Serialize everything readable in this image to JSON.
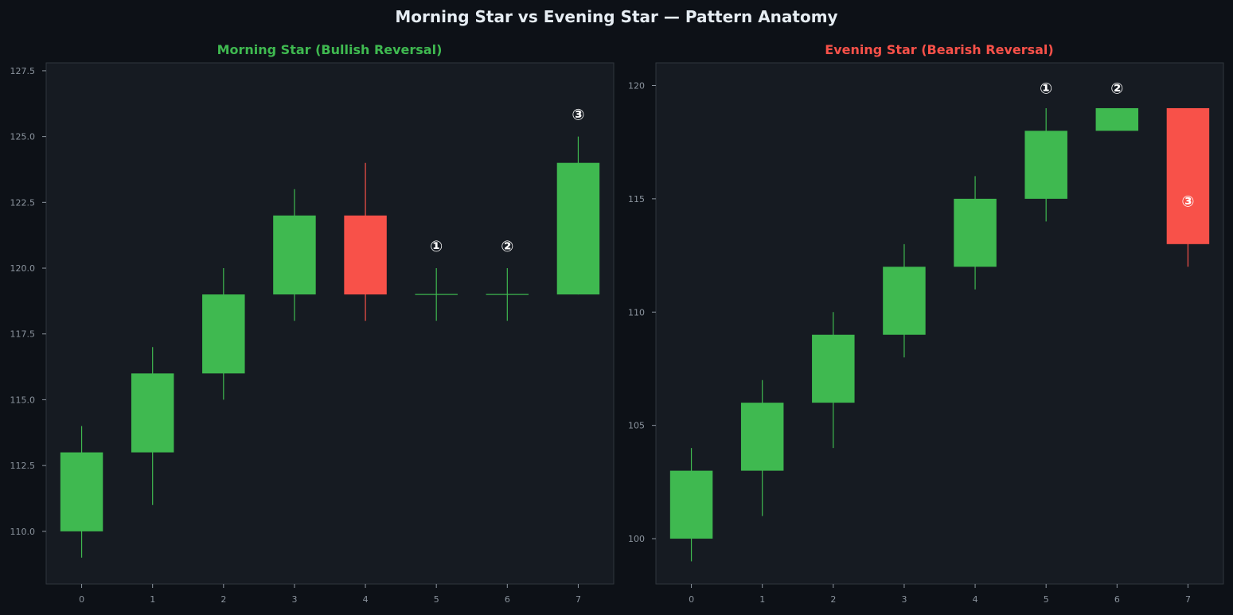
{
  "figure": {
    "title": "Morning Star vs Evening Star — Pattern Anatomy",
    "background": "#0d1117",
    "panel_background": "#161b22",
    "spine_color": "#30363d",
    "tick_color": "#8b949e",
    "bullish_color": "#3fb950",
    "bearish_color": "#f85149",
    "marker_color": "#ffffff"
  },
  "chart_data": [
    {
      "type": "candlestick",
      "title": "Morning Star (Bullish Reversal)",
      "title_color": "#3fb950",
      "xlabel": "",
      "ylabel": "",
      "xlim": [
        -0.5,
        7.5
      ],
      "ylim": [
        108.0,
        127.8
      ],
      "x_ticks": [
        0,
        1,
        2,
        3,
        4,
        5,
        6,
        7
      ],
      "y_ticks": [
        110.0,
        112.5,
        115.0,
        117.5,
        120.0,
        122.5,
        125.0,
        127.5
      ],
      "y_tick_labels": [
        "110.0",
        "112.5",
        "115.0",
        "117.5",
        "120.0",
        "122.5",
        "125.0",
        "127.5"
      ],
      "grid": false,
      "candles": [
        {
          "x": 0,
          "open": 110,
          "high": 114,
          "low": 109,
          "close": 113
        },
        {
          "x": 1,
          "open": 113,
          "high": 117,
          "low": 111,
          "close": 116
        },
        {
          "x": 2,
          "open": 116,
          "high": 120,
          "low": 115,
          "close": 119
        },
        {
          "x": 3,
          "open": 119,
          "high": 123,
          "low": 118,
          "close": 122
        },
        {
          "x": 4,
          "open": 122,
          "high": 124,
          "low": 118,
          "close": 119
        },
        {
          "x": 5,
          "open": 119,
          "high": 120,
          "low": 118,
          "close": 119
        },
        {
          "x": 6,
          "open": 119,
          "high": 120,
          "low": 118,
          "close": 119
        },
        {
          "x": 7,
          "open": 119,
          "high": 125,
          "low": 119,
          "close": 124
        }
      ],
      "annotations": [
        {
          "text": "①",
          "x": 5,
          "y": 120.85
        },
        {
          "text": "②",
          "x": 6,
          "y": 120.85
        },
        {
          "text": "③",
          "x": 7,
          "y": 125.85
        }
      ]
    },
    {
      "type": "candlestick",
      "title": "Evening Star (Bearish Reversal)",
      "title_color": "#f85149",
      "xlabel": "",
      "ylabel": "",
      "xlim": [
        -0.5,
        7.5
      ],
      "ylim": [
        98.0,
        121.0
      ],
      "x_ticks": [
        0,
        1,
        2,
        3,
        4,
        5,
        6,
        7
      ],
      "y_ticks": [
        100,
        105,
        110,
        115,
        120
      ],
      "y_tick_labels": [
        "100",
        "105",
        "110",
        "115",
        "120"
      ],
      "grid": false,
      "candles": [
        {
          "x": 0,
          "open": 100,
          "high": 104,
          "low": 99,
          "close": 103
        },
        {
          "x": 1,
          "open": 103,
          "high": 107,
          "low": 101,
          "close": 106
        },
        {
          "x": 2,
          "open": 106,
          "high": 110,
          "low": 104,
          "close": 109
        },
        {
          "x": 3,
          "open": 109,
          "high": 113,
          "low": 108,
          "close": 112
        },
        {
          "x": 4,
          "open": 112,
          "high": 116,
          "low": 111,
          "close": 115
        },
        {
          "x": 5,
          "open": 115,
          "high": 119,
          "low": 114,
          "close": 118
        },
        {
          "x": 6,
          "open": 118,
          "high": 119,
          "low": 118,
          "close": 119
        },
        {
          "x": 7,
          "open": 119,
          "high": 119,
          "low": 112,
          "close": 113
        }
      ],
      "annotations": [
        {
          "text": "①",
          "x": 5,
          "y": 119.9
        },
        {
          "text": "②",
          "x": 6,
          "y": 119.9
        },
        {
          "text": "③",
          "x": 7,
          "y": 114.9
        }
      ]
    }
  ]
}
